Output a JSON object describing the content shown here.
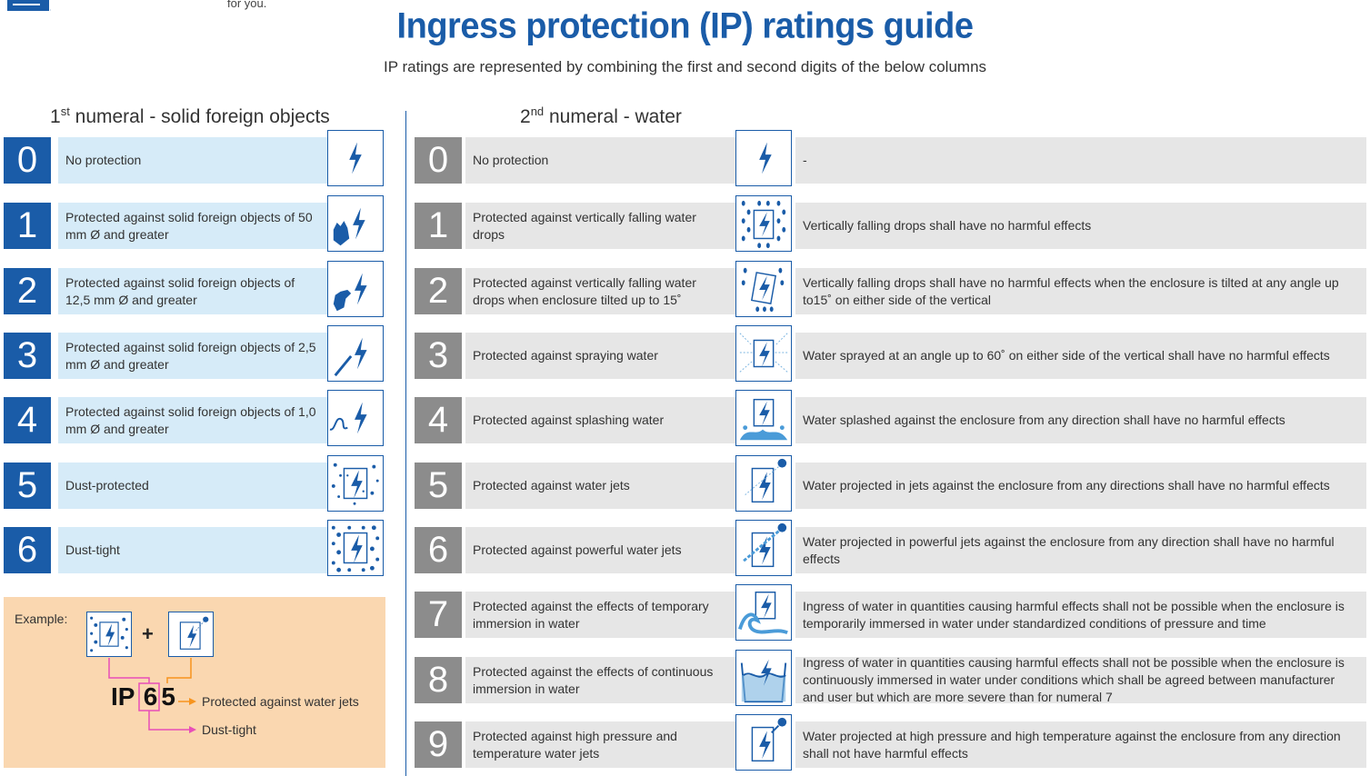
{
  "header": {
    "tagline": "for you.",
    "title": "Ingress protection (IP) ratings guide",
    "subtitle": "IP ratings are represented by combining the first and second digits of the below columns"
  },
  "col1": {
    "heading_pre": "1",
    "heading_sup": "st",
    "heading_post": " numeral - solid foreign objects",
    "rows": [
      {
        "num": "0",
        "text": "No protection",
        "icon": "bolt-icon"
      },
      {
        "num": "1",
        "text": "Protected against solid foreign objects of 50 mm Ø and greater",
        "icon": "hand-bolt-icon"
      },
      {
        "num": "2",
        "text": "Protected against solid foreign objects of 12,5 mm Ø and greater",
        "icon": "finger-bolt-icon"
      },
      {
        "num": "3",
        "text": "Protected against solid foreign objects of 2,5 mm Ø and greater",
        "icon": "tool-bolt-icon"
      },
      {
        "num": "4",
        "text": "Protected against solid foreign objects of 1,0 mm Ø and greater",
        "icon": "wire-bolt-icon"
      },
      {
        "num": "5",
        "text": "Dust-protected",
        "icon": "dust-bolt-icon"
      },
      {
        "num": "6",
        "text": "Dust-tight",
        "icon": "dust-tight-bolt-icon"
      }
    ]
  },
  "col2": {
    "heading_pre": "2",
    "heading_sup": "nd",
    "heading_post": " numeral - water",
    "rows": [
      {
        "num": "0",
        "text": "No protection",
        "icon": "bolt-icon",
        "detail": "-"
      },
      {
        "num": "1",
        "text": "Protected against vertically falling water drops",
        "icon": "drops-bolt-icon",
        "detail": "Vertically falling drops shall have no harmful effects"
      },
      {
        "num": "2",
        "text": "Protected against vertically falling water drops when enclosure tilted up to 15˚",
        "icon": "tilted-drops-bolt-icon",
        "detail": "Vertically falling drops shall have no harmful effects when the enclosure is tilted at any angle up to15˚ on either side of the vertical"
      },
      {
        "num": "3",
        "text": "Protected against spraying water",
        "icon": "spray-bolt-icon",
        "detail": "Water sprayed at an angle up to 60˚ on either side of the vertical shall have no harmful effects"
      },
      {
        "num": "4",
        "text": "Protected against splashing water",
        "icon": "splash-bolt-icon",
        "detail": "Water splashed against the enclosure from any direction shall have no harmful effects"
      },
      {
        "num": "5",
        "text": "Protected against water jets",
        "icon": "jet-bolt-icon",
        "detail": "Water projected in jets against the enclosure from any directions shall have no harmful effects"
      },
      {
        "num": "6",
        "text": "Protected against powerful water jets",
        "icon": "powerful-jet-bolt-icon",
        "detail": "Water projected in powerful jets against the enclosure from any direction shall have no harmful effects"
      },
      {
        "num": "7",
        "text": "Protected against the effects of temporary immersion in water",
        "icon": "wave-bolt-icon",
        "detail": "Ingress of water in quantities causing harmful effects shall not be possible when the enclosure is temporarily immersed in water under standardized conditions of pressure and time"
      },
      {
        "num": "8",
        "text": "Protected against the effects of continuous immersion in water",
        "icon": "immersion-bolt-icon",
        "detail": "Ingress of water in quantities causing harmful effects shall not be possible when the enclosure is continuously immersed in water under conditions which shall be agreed between manufacturer and user but which are more severe than for numeral 7"
      },
      {
        "num": "9",
        "text": "Protected against high pressure and temperature water jets",
        "icon": "high-pressure-jet-bolt-icon",
        "detail": "Water projected at high pressure and high temperature against the enclosure from any direction shall not have harmful effects"
      }
    ]
  },
  "example": {
    "label": "Example:",
    "plus": "+",
    "ip": "IP",
    "digit1": "6",
    "digit2": "5",
    "water_text": "Protected against water jets",
    "dust_text": "Dust-tight"
  },
  "colors": {
    "brand_blue": "#1a5ca8",
    "light_blue": "#d6ebf8",
    "grey": "#8c8c8c",
    "light_grey": "#e6e6e6",
    "example_bg": "#fad7b0",
    "pink": "#e84fb8",
    "orange": "#f7941d"
  }
}
